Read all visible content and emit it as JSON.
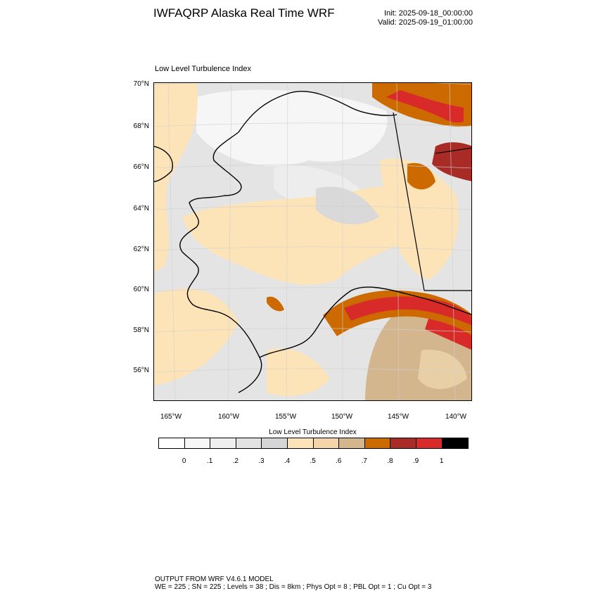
{
  "header": {
    "title": "IWFAQRP Alaska Real Time WRF",
    "init": "Init: 2025-09-18_00:00:00",
    "valid": "Valid: 2025-09-19_01:00:00"
  },
  "map": {
    "field_label": "Low Level Turbulence Index",
    "lat_labels": [
      "70°N",
      "68°N",
      "66°N",
      "64°N",
      "62°N",
      "60°N",
      "58°N",
      "56°N"
    ],
    "lon_labels": [
      "165°W",
      "160°W",
      "155°W",
      "150°W",
      "145°W",
      "140°W"
    ]
  },
  "colorbar": {
    "title": "Low Level Turbulence Index",
    "colors": [
      "#ffffff",
      "#f7f7f7",
      "#efefef",
      "#e3e3e3",
      "#d6d6d6",
      "#fde4b8",
      "#f5d5a8",
      "#d3b58e",
      "#cc6a00",
      "#a82b26",
      "#d92a2a",
      "#000000"
    ],
    "ticks": [
      "0",
      ".1",
      ".2",
      ".3",
      ".4",
      ".5",
      ".6",
      ".7",
      ".8",
      ".9",
      "1"
    ]
  },
  "footer": {
    "line1": "OUTPUT FROM WRF V4.6.1 MODEL",
    "line2": "WE = 225 ; SN = 225 ; Levels = 38 ; Dis = 8km ; Phys Opt = 8 ; PBL Opt = 1 ; Cu Opt = 3"
  }
}
